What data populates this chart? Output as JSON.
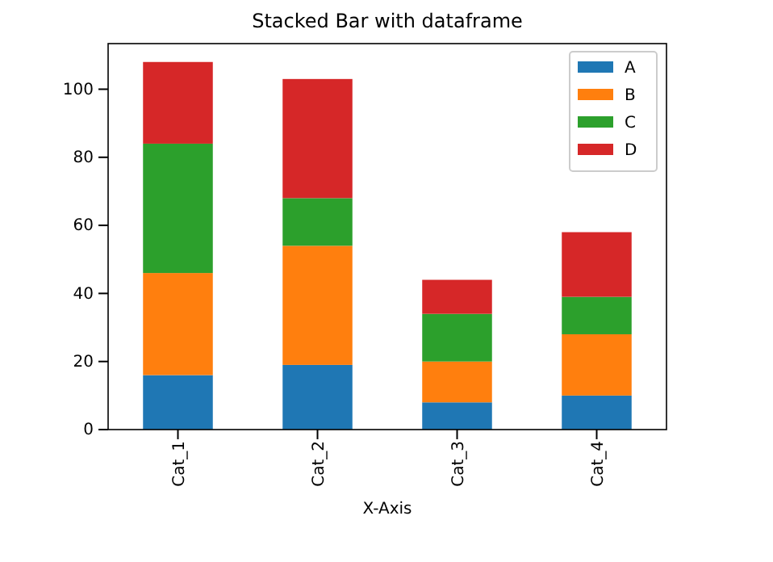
{
  "chart_data": {
    "type": "bar",
    "title": "Stacked Bar with dataframe",
    "xlabel": "X-Axis",
    "categories": [
      "Cat_1",
      "Cat_2",
      "Cat_3",
      "Cat_4"
    ],
    "stacked": true,
    "series": [
      {
        "name": "A",
        "color": "#1f77b4",
        "values": [
          16,
          19,
          8,
          10
        ]
      },
      {
        "name": "B",
        "color": "#ff7f0e",
        "values": [
          30,
          35,
          12,
          18
        ]
      },
      {
        "name": "C",
        "color": "#2ca02c",
        "values": [
          38,
          14,
          14,
          11
        ]
      },
      {
        "name": "D",
        "color": "#d62728",
        "values": [
          24,
          35,
          10,
          19
        ]
      }
    ],
    "ylim": [
      0,
      113.4
    ],
    "yticks": [
      0,
      20,
      40,
      60,
      80,
      100
    ],
    "legend": "top right"
  }
}
